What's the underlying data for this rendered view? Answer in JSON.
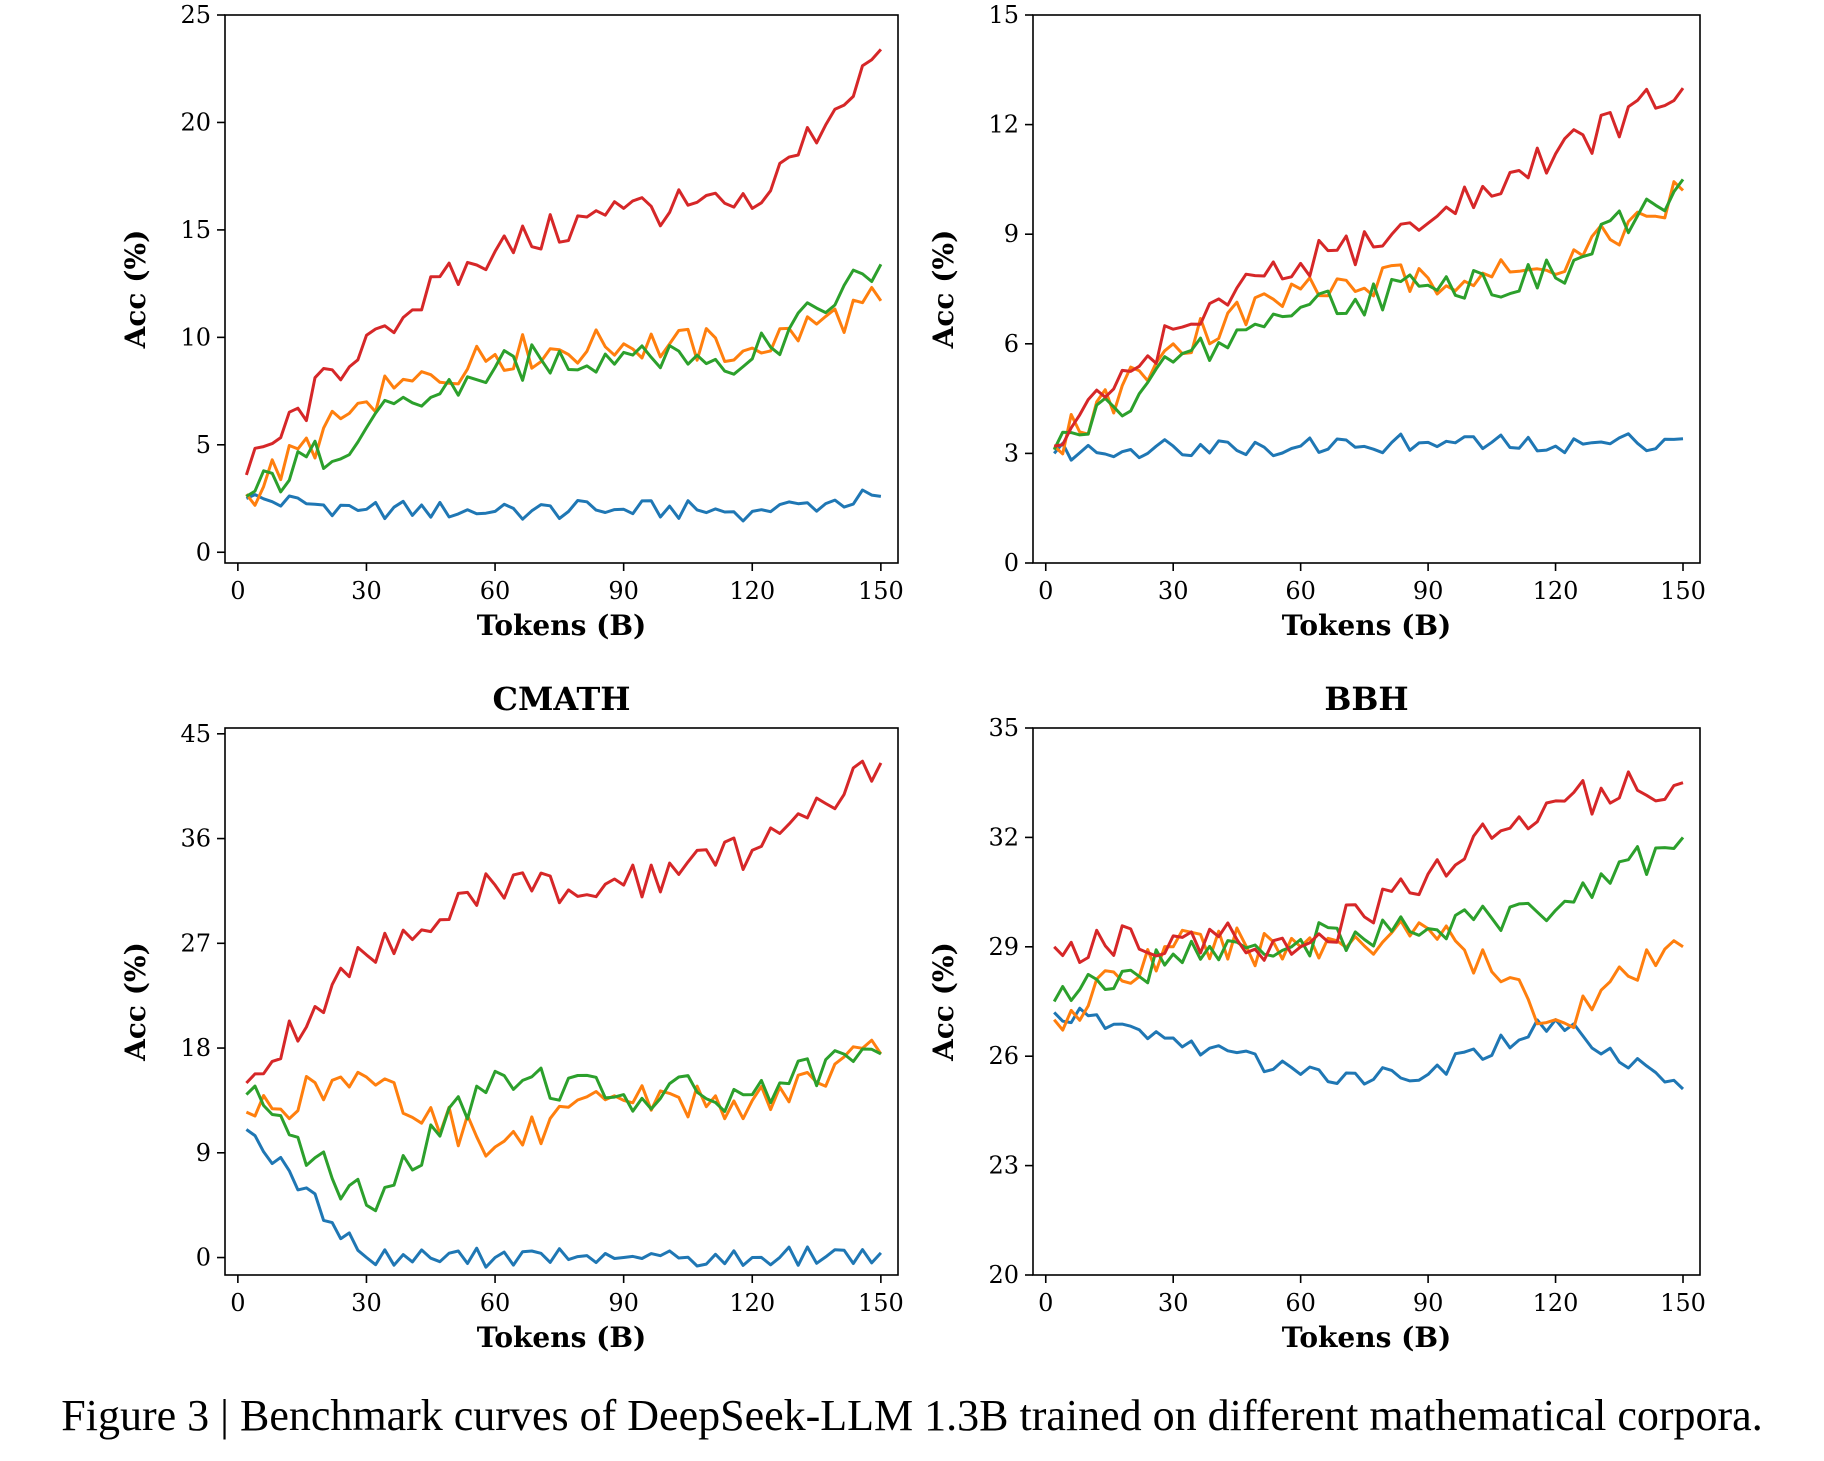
{
  "caption": "Figure 3 | Benchmark curves of DeepSeek-LLM 1.3B trained on different mathematical corpora.",
  "colors": {
    "s0": "#1f77b4",
    "s1": "#ff7f0e",
    "s2": "#2ca02c",
    "s3": "#d62728"
  },
  "chart_data": [
    {
      "type": "line",
      "title": "",
      "xlabel": "Tokens (B)",
      "ylabel": "Acc (%)",
      "xlim": [
        -3,
        154
      ],
      "ylim": [
        -0.5,
        25
      ],
      "xticks": [
        0,
        30,
        60,
        90,
        120,
        150
      ],
      "yticks": [
        0,
        5,
        10,
        15,
        20,
        25
      ],
      "grid": false,
      "x": [
        2,
        30,
        60,
        90,
        120,
        150
      ],
      "series": [
        {
          "values": [
            2.5,
            2.0,
            1.9,
            2.0,
            1.9,
            2.6
          ]
        },
        {
          "values": [
            2.7,
            7.0,
            9.2,
            9.7,
            9.5,
            11.7
          ]
        },
        {
          "values": [
            2.6,
            5.8,
            8.6,
            9.3,
            9.0,
            13.4
          ]
        },
        {
          "values": [
            3.6,
            10.1,
            14.0,
            16.0,
            16.0,
            23.4
          ]
        }
      ]
    },
    {
      "type": "line",
      "title": "",
      "xlabel": "Tokens (B)",
      "ylabel": "Acc (%)",
      "xlim": [
        -3,
        154
      ],
      "ylim": [
        0,
        15
      ],
      "xticks": [
        0,
        30,
        60,
        90,
        120,
        150
      ],
      "yticks": [
        0,
        3,
        6,
        9,
        12,
        15
      ],
      "grid": false,
      "x": [
        2,
        30,
        60,
        90,
        120,
        150
      ],
      "series": [
        {
          "values": [
            3.0,
            3.2,
            3.2,
            3.3,
            3.2,
            3.4
          ]
        },
        {
          "values": [
            3.2,
            6.0,
            7.5,
            7.8,
            7.9,
            10.2
          ]
        },
        {
          "values": [
            3.1,
            5.5,
            7.0,
            7.6,
            7.8,
            10.5
          ]
        },
        {
          "values": [
            3.2,
            6.4,
            8.2,
            9.3,
            11.2,
            13.0
          ]
        }
      ]
    },
    {
      "type": "line",
      "title": "CMATH",
      "xlabel": "Tokens (B)",
      "ylabel": "Acc (%)",
      "xlim": [
        -3,
        154
      ],
      "ylim": [
        -1.5,
        45.5
      ],
      "xticks": [
        0,
        30,
        60,
        90,
        120,
        150
      ],
      "yticks": [
        0,
        9,
        18,
        27,
        36,
        45
      ],
      "grid": false,
      "x": [
        2,
        30,
        60,
        90,
        120,
        150
      ],
      "series": [
        {
          "values": [
            11.0,
            0.0,
            0.0,
            0.0,
            0.0,
            0.4
          ]
        },
        {
          "values": [
            12.5,
            15.5,
            9.5,
            13.5,
            13.5,
            17.5
          ]
        },
        {
          "values": [
            14.0,
            4.5,
            16.0,
            14.0,
            14.0,
            17.5
          ]
        },
        {
          "values": [
            15.0,
            26.0,
            32.0,
            32.0,
            35.0,
            42.5
          ]
        }
      ]
    },
    {
      "type": "line",
      "title": "BBH",
      "xlabel": "Tokens (B)",
      "ylabel": "Acc (%)",
      "xlim": [
        -3,
        154
      ],
      "ylim": [
        20,
        35
      ],
      "xticks": [
        0,
        30,
        60,
        90,
        120,
        150
      ],
      "yticks": [
        20,
        23,
        26,
        29,
        32,
        35
      ],
      "grid": false,
      "x": [
        2,
        30,
        60,
        90,
        120,
        150
      ],
      "series": [
        {
          "values": [
            27.2,
            26.5,
            25.5,
            25.5,
            27.0,
            25.1
          ]
        },
        {
          "values": [
            27.0,
            29.0,
            29.0,
            29.5,
            27.0,
            29.0
          ]
        },
        {
          "values": [
            27.5,
            28.8,
            29.2,
            29.5,
            30.0,
            32.0
          ]
        },
        {
          "values": [
            29.0,
            29.3,
            29.0,
            31.0,
            33.0,
            33.5
          ]
        }
      ]
    }
  ]
}
